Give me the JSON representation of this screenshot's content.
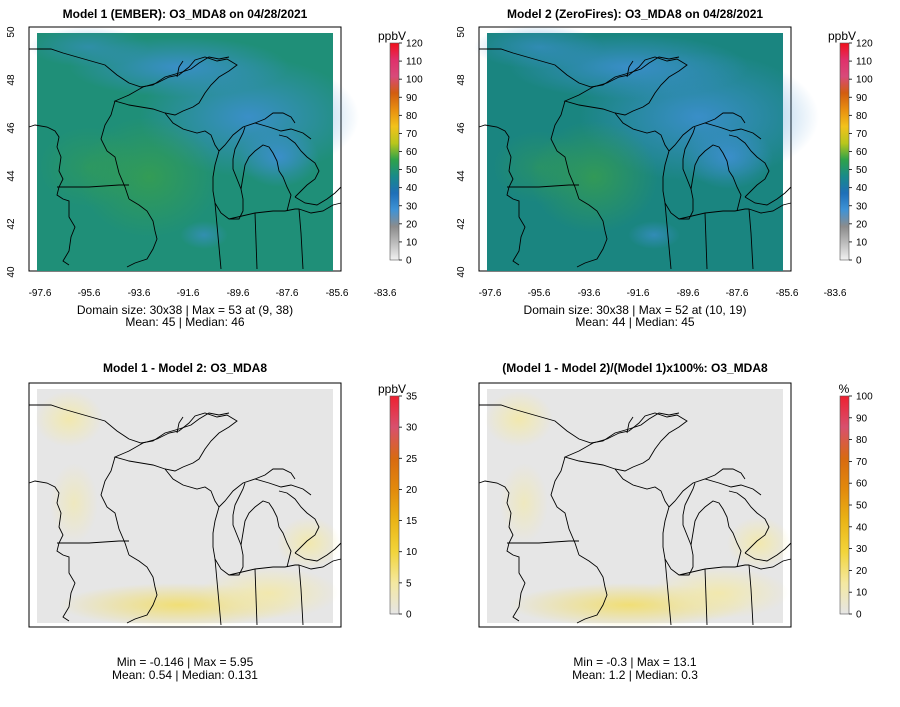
{
  "chart_data": [
    {
      "type": "heatmap",
      "title": "Model 1 (EMBER): O3_MDA8 on 04/28/2021",
      "unit": "ppbV",
      "x_ticks": [
        "-97.6",
        "-95.6",
        "-93.6",
        "-91.6",
        "-89.6",
        "-87.6",
        "-85.6",
        "-83.6"
      ],
      "y_ticks": [
        "40",
        "42",
        "44",
        "46",
        "48",
        "50"
      ],
      "colorbar_ticks": [
        "0",
        "10",
        "20",
        "30",
        "40",
        "50",
        "60",
        "70",
        "80",
        "90",
        "100",
        "110",
        "120"
      ],
      "colorbar_range": [
        0,
        120
      ],
      "stats_line1": "Domain size: 30x38 | Max = 53 at (9, 38)",
      "stats_line2": "Mean: 45 |  Median: 46",
      "domain_size": "30x38",
      "max": 53,
      "max_at": [
        9,
        38
      ],
      "mean": 45,
      "median": 46
    },
    {
      "type": "heatmap",
      "title": "Model 2 (ZeroFires): O3_MDA8 on 04/28/2021",
      "unit": "ppbV",
      "x_ticks": [
        "-97.6",
        "-95.6",
        "-93.6",
        "-91.6",
        "-89.6",
        "-87.6",
        "-85.6",
        "-83.6"
      ],
      "y_ticks": [
        "40",
        "42",
        "44",
        "46",
        "48",
        "50"
      ],
      "colorbar_ticks": [
        "0",
        "10",
        "20",
        "30",
        "40",
        "50",
        "60",
        "70",
        "80",
        "90",
        "100",
        "110",
        "120"
      ],
      "colorbar_range": [
        0,
        120
      ],
      "stats_line1": "Domain size: 30x38 | Max = 52 at (10, 19)",
      "stats_line2": "Mean: 44 |  Median: 45",
      "domain_size": "30x38",
      "max": 52,
      "max_at": [
        10,
        19
      ],
      "mean": 44,
      "median": 45
    },
    {
      "type": "heatmap",
      "title": "Model 1 - Model 2: O3_MDA8",
      "unit": "ppbV",
      "colorbar_ticks": [
        "0",
        "5",
        "10",
        "15",
        "20",
        "25",
        "30",
        "35"
      ],
      "colorbar_range": [
        0,
        35
      ],
      "stats_line1": "Min = -0.146 | Max = 5.95",
      "stats_line2": "Mean: 0.54 |  Median: 0.131",
      "min": -0.146,
      "max": 5.95,
      "mean": 0.54,
      "median": 0.131
    },
    {
      "type": "heatmap",
      "title": "(Model 1 - Model 2)/(Model 1)x100%: O3_MDA8",
      "unit": "%",
      "colorbar_ticks": [
        "0",
        "10",
        "20",
        "30",
        "40",
        "50",
        "60",
        "70",
        "80",
        "90",
        "100"
      ],
      "colorbar_range": [
        0,
        100
      ],
      "stats_line1": "Min = -0.3 | Max = 13.1",
      "stats_line2": "Mean: 1.2 |  Median: 0.3",
      "min": -0.3,
      "max": 13.1,
      "mean": 1.2,
      "median": 0.3
    }
  ],
  "colors": {
    "absolute_scale": [
      "#f2f2f2",
      "#bdbdbd",
      "#8c8c8c",
      "#3f93d6",
      "#1e6fb8",
      "#188a8a",
      "#2ea24a",
      "#b8c61c",
      "#f2c21b",
      "#e88f10",
      "#d25d0f",
      "#d84a7a",
      "#e0306a",
      "#f20f1a"
    ],
    "diff_scale": [
      "#e6e6e6",
      "#f4e8a0",
      "#f2d43a",
      "#eab416",
      "#e28a0c",
      "#d86a10",
      "#d8506e",
      "#ee2030"
    ],
    "model1_field": "#1f8f78",
    "model2_field": "#1a8580",
    "diff_field": "#e6e6e6",
    "border": "#000000"
  }
}
